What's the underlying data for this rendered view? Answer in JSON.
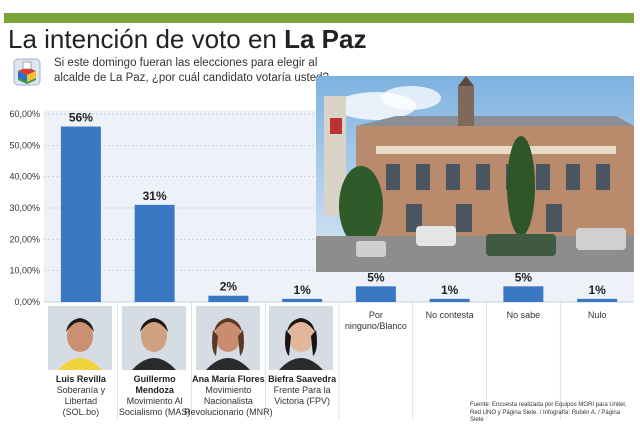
{
  "header": {
    "title_prefix": "La intención de voto en",
    "title_city": "La Paz",
    "subtitle": "Si este domingo fueran las elecciones para elegir al alcalde de La Paz, ¿por cuál candidato votaría usted?"
  },
  "colors": {
    "bar": "#3b78c3",
    "header_bar": "#7aa33a",
    "panel": "#eef2f8"
  },
  "chart_data": {
    "type": "bar",
    "title": "La intención de voto en La Paz",
    "ylim": [
      0,
      60
    ],
    "yticks": [
      "0,00%",
      "10,00%",
      "20,00%",
      "30,00%",
      "40,00%",
      "50,00%",
      "60,00%"
    ],
    "grid": true,
    "values": [
      56,
      31,
      2,
      1,
      5,
      1,
      5,
      1
    ],
    "value_labels": [
      "56%",
      "31%",
      "2%",
      "1%",
      "5%",
      "1%",
      "5%",
      "1%"
    ],
    "categories": [
      {
        "name": "Luis Revilla",
        "lines": [
          "Soberanía y",
          "Libertad",
          "(SOL.bo)"
        ]
      },
      {
        "name": "Guillermo",
        "name2": "Mendoza",
        "lines": [
          "Movimiento Al",
          "Socialismo (MAS)"
        ]
      },
      {
        "name": "Ana María Flores",
        "lines": [
          "Movimiento",
          "Nacionalista",
          "Revolucionario (MNR)"
        ]
      },
      {
        "name": "Biefra Saavedra",
        "lines": [
          "Frente Para la",
          "Victoria (FPV)"
        ]
      },
      {
        "name": "",
        "lines": [
          "Por",
          "ninguno/Blanco"
        ]
      },
      {
        "name": "",
        "lines": [
          "No contesta"
        ]
      },
      {
        "name": "",
        "lines": [
          "No sabe"
        ]
      },
      {
        "name": "",
        "lines": [
          "Nulo"
        ]
      }
    ]
  },
  "source": {
    "line1": "Fuente: Encuesta realizada por Equipos MORI para Unitel,",
    "line2": "Red UNO y Página Siete. / Infografía: Rubén A. / Página Siete"
  }
}
